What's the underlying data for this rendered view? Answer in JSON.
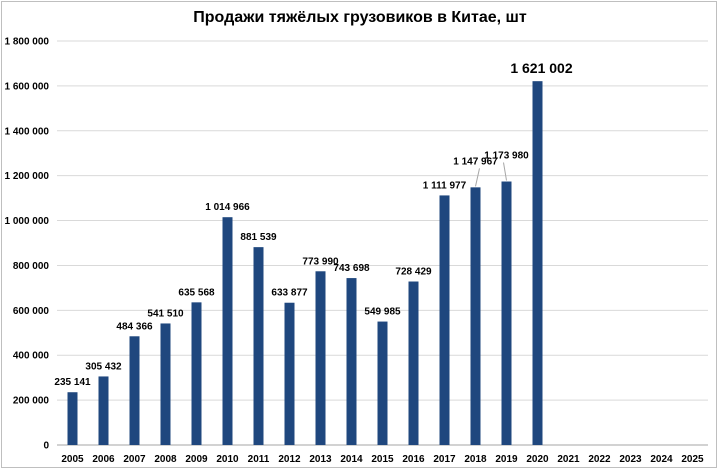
{
  "chart_data": {
    "type": "bar",
    "title": "Продажи тяжёлых грузовиков в Китае, шт",
    "categories": [
      "2005",
      "2006",
      "2007",
      "2008",
      "2009",
      "2010",
      "2011",
      "2012",
      "2013",
      "2014",
      "2015",
      "2016",
      "2017",
      "2018",
      "2019",
      "2020",
      "2021",
      "2022",
      "2023",
      "2024",
      "2025"
    ],
    "values": [
      235141,
      305432,
      484366,
      541510,
      635568,
      1014966,
      881539,
      633877,
      773990,
      743698,
      549985,
      728429,
      1111977,
      1147967,
      1173980,
      1621002,
      null,
      null,
      null,
      null,
      null
    ],
    "data_labels": [
      "235 141",
      "305 432",
      "484 366",
      "541 510",
      "635 568",
      "1 014 966",
      "881 539",
      "633 877",
      "773 990",
      "743 698",
      "549 985",
      "728 429",
      "1 111 977",
      "1 147 967",
      "1 173 980",
      "1 621 002",
      "",
      "",
      "",
      "",
      ""
    ],
    "y_ticks": [
      0,
      200000,
      400000,
      600000,
      800000,
      1000000,
      1200000,
      1400000,
      1600000,
      1800000
    ],
    "y_tick_labels": [
      "0",
      "200 000",
      "400 000",
      "600 000",
      "800 000",
      "1 000 000",
      "1 200 000",
      "1 400 000",
      "1 600 000",
      "1 800 000"
    ],
    "ylim": [
      0,
      1800000
    ],
    "xlabel": "",
    "ylabel": "",
    "grid": true,
    "legend": "none",
    "bar_color": "#1f477e"
  }
}
